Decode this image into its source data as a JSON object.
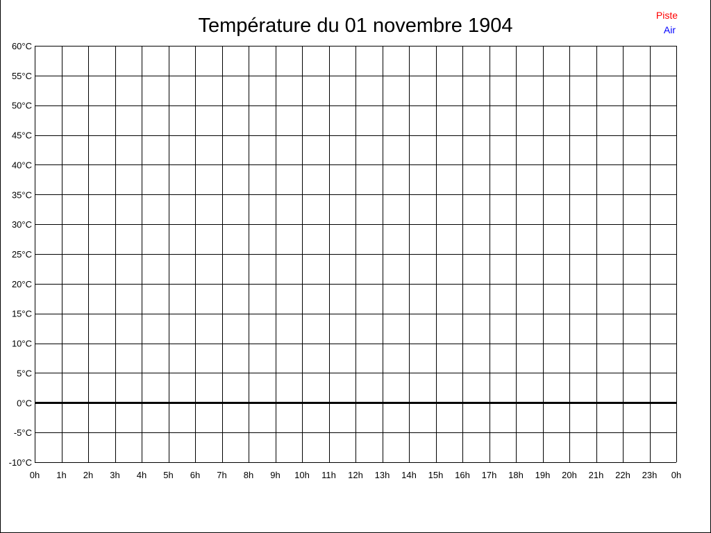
{
  "chart_data": {
    "type": "line",
    "title": "Température du 01 novembre 1904",
    "xlabel": "",
    "ylabel": "",
    "x_ticks": [
      "0h",
      "1h",
      "2h",
      "3h",
      "4h",
      "5h",
      "6h",
      "7h",
      "8h",
      "9h",
      "10h",
      "11h",
      "12h",
      "13h",
      "14h",
      "15h",
      "16h",
      "17h",
      "18h",
      "19h",
      "20h",
      "21h",
      "22h",
      "23h",
      "0h"
    ],
    "y_ticks": [
      "60°C",
      "55°C",
      "50°C",
      "45°C",
      "40°C",
      "35°C",
      "30°C",
      "25°C",
      "20°C",
      "15°C",
      "10°C",
      "5°C",
      "0°C",
      "-5°C",
      "-10°C"
    ],
    "xlim": [
      0,
      24
    ],
    "ylim": [
      -10,
      60
    ],
    "y_step": 5,
    "grid": true,
    "zero_line_emphasized": true,
    "legend_position": "top-right",
    "series": [
      {
        "name": "Piste",
        "color": "#ff0000",
        "values": []
      },
      {
        "name": "Air",
        "color": "#0000ff",
        "values": []
      }
    ]
  }
}
